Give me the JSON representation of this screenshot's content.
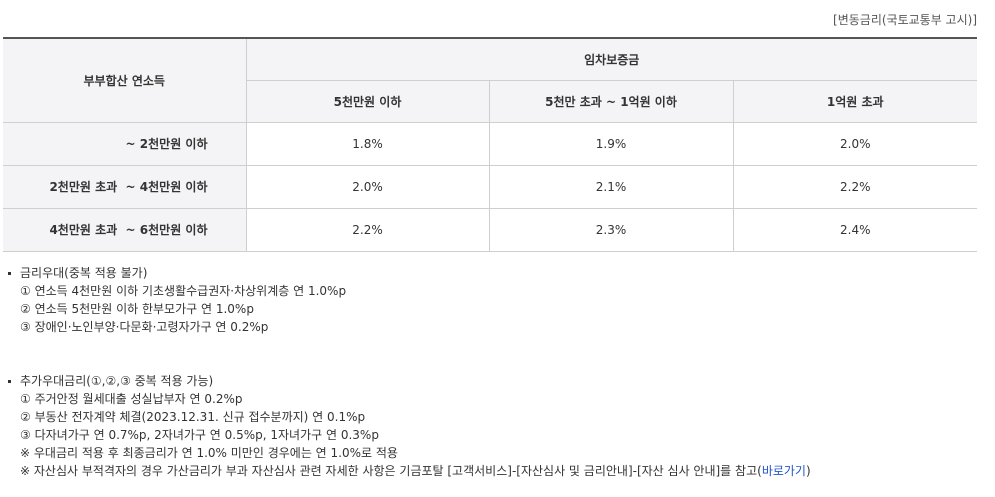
{
  "top_note": "[변동금리(국토교통부 고시)]",
  "table": {
    "row_header_label": "부부합산 연소득",
    "group_header": "임차보증금",
    "columns": [
      "5천만원 이하",
      "5천만 초과 ~ 1억원 이하",
      "1억원 초과"
    ],
    "rows": [
      {
        "label": "~ 2천만원 이하",
        "values": [
          "1.8%",
          "1.9%",
          "2.0%"
        ]
      },
      {
        "label": "2천만원 초과  ~ 4천만원 이하",
        "values": [
          "2.0%",
          "2.1%",
          "2.2%"
        ]
      },
      {
        "label": "4천만원 초과  ~ 6천만원 이하",
        "values": [
          "2.2%",
          "2.3%",
          "2.4%"
        ]
      }
    ]
  },
  "notes": {
    "discount": {
      "title": "금리우대(중복 적용 불가)",
      "items": [
        "① 연소득 4천만원 이하 기초생활수급권자·차상위계층 연 1.0%p",
        "② 연소득 5천만원 이하 한부모가구 연 1.0%p",
        "③ 장애인·노인부양·다문화·고령자가구 연 0.2%p"
      ]
    },
    "additional": {
      "title": "추가우대금리(①,②,③ 중복 적용 가능)",
      "items": [
        "① 주거안정 월세대출 성실납부자 연 0.2%p",
        "② 부동산 전자계약 체결(2023.12.31. 신규 접수분까지) 연 0.1%p",
        "③ 다자녀가구 연 0.7%p, 2자녀가구 연 0.5%p, 1자녀가구 연 0.3%p",
        "※ 우대금리 적용 후 최종금리가 연 1.0% 미만인 경우에는 연 1.0%로 적용"
      ],
      "last_line_text": "※ 자산심사 부적격자의 경우 가산금리가 부과 자산심사 관련 자세한 사항은 기금포탈 [고객서비스]-[자산심사 및 금리안내]-[자산 심사 안내]를 참고(",
      "link_label": "바로가기",
      "last_line_end": ")"
    }
  }
}
